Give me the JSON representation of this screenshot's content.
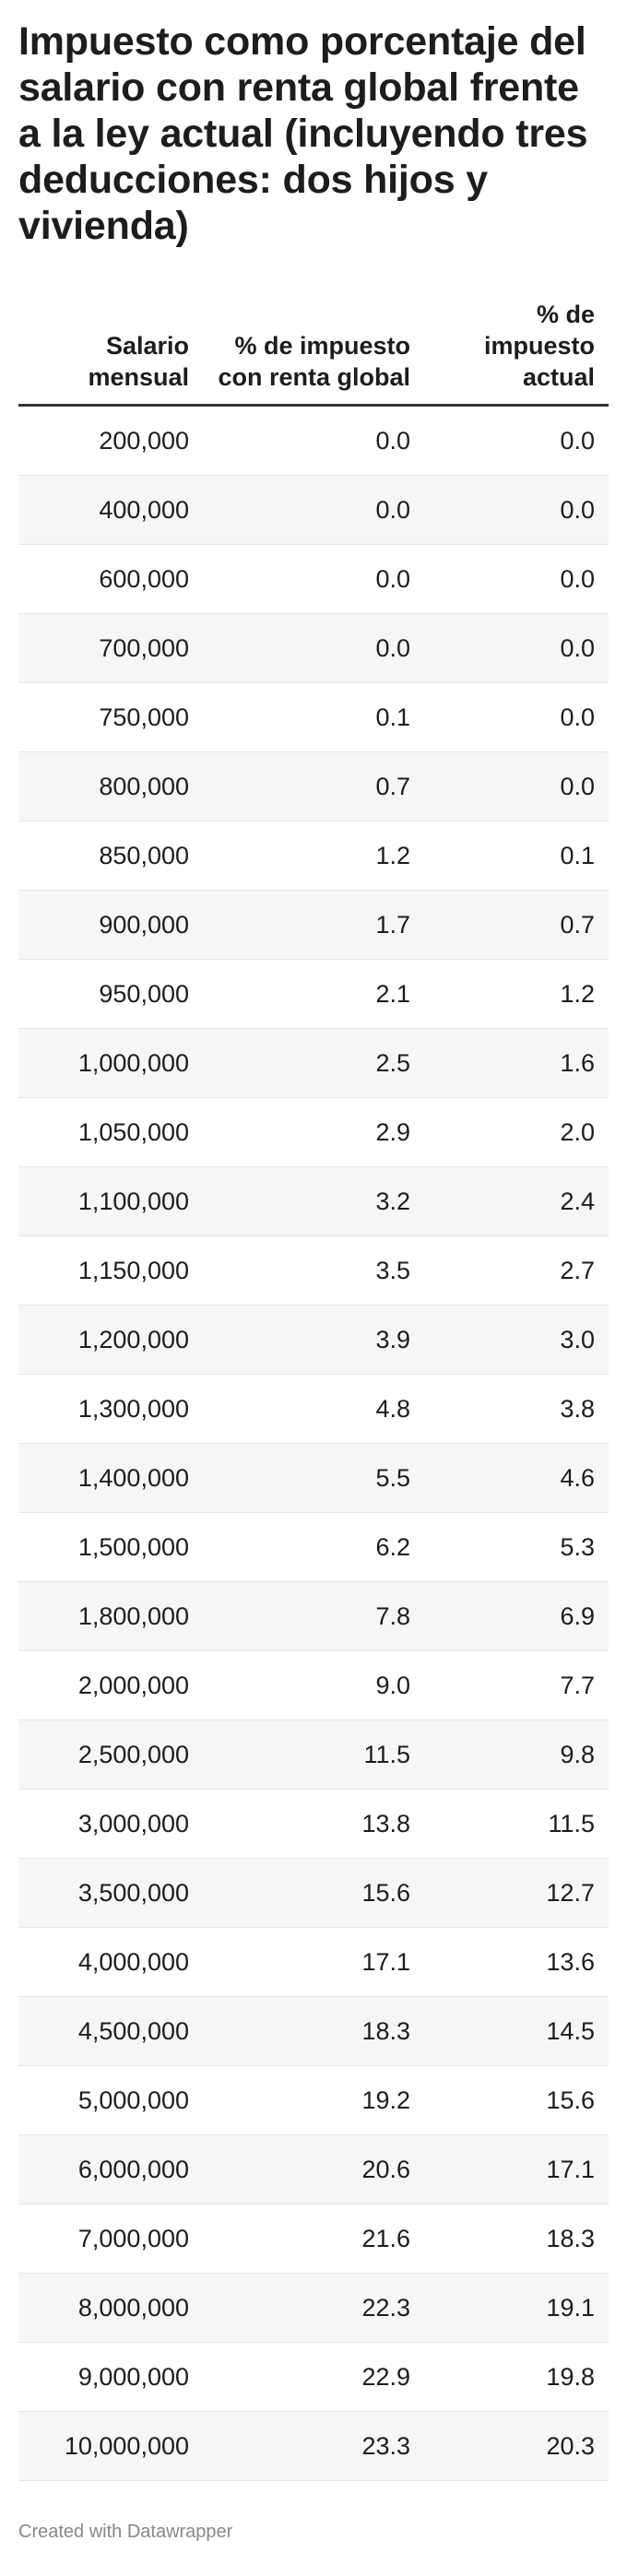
{
  "title": "Impuesto como porcentaje del salario con renta global frente a la ley actual (incluyendo tres deducciones: dos hijos y vivienda)",
  "footer": "Created with Datawrapper",
  "chart_data": {
    "type": "table",
    "title": "Impuesto como porcentaje del salario con renta global frente a la ley actual (incluyendo tres deducciones: dos hijos y vivienda)",
    "columns": [
      "Salario mensual",
      "% de impuesto con renta global",
      "% de impuesto actual"
    ],
    "rows": [
      [
        "200,000",
        "0.0",
        "0.0"
      ],
      [
        "400,000",
        "0.0",
        "0.0"
      ],
      [
        "600,000",
        "0.0",
        "0.0"
      ],
      [
        "700,000",
        "0.0",
        "0.0"
      ],
      [
        "750,000",
        "0.1",
        "0.0"
      ],
      [
        "800,000",
        "0.7",
        "0.0"
      ],
      [
        "850,000",
        "1.2",
        "0.1"
      ],
      [
        "900,000",
        "1.7",
        "0.7"
      ],
      [
        "950,000",
        "2.1",
        "1.2"
      ],
      [
        "1,000,000",
        "2.5",
        "1.6"
      ],
      [
        "1,050,000",
        "2.9",
        "2.0"
      ],
      [
        "1,100,000",
        "3.2",
        "2.4"
      ],
      [
        "1,150,000",
        "3.5",
        "2.7"
      ],
      [
        "1,200,000",
        "3.9",
        "3.0"
      ],
      [
        "1,300,000",
        "4.8",
        "3.8"
      ],
      [
        "1,400,000",
        "5.5",
        "4.6"
      ],
      [
        "1,500,000",
        "6.2",
        "5.3"
      ],
      [
        "1,800,000",
        "7.8",
        "6.9"
      ],
      [
        "2,000,000",
        "9.0",
        "7.7"
      ],
      [
        "2,500,000",
        "11.5",
        "9.8"
      ],
      [
        "3,000,000",
        "13.8",
        "11.5"
      ],
      [
        "3,500,000",
        "15.6",
        "12.7"
      ],
      [
        "4,000,000",
        "17.1",
        "13.6"
      ],
      [
        "4,500,000",
        "18.3",
        "14.5"
      ],
      [
        "5,000,000",
        "19.2",
        "15.6"
      ],
      [
        "6,000,000",
        "20.6",
        "17.1"
      ],
      [
        "7,000,000",
        "21.6",
        "18.3"
      ],
      [
        "8,000,000",
        "22.3",
        "19.1"
      ],
      [
        "9,000,000",
        "22.9",
        "19.8"
      ],
      [
        "10,000,000",
        "23.3",
        "20.3"
      ]
    ]
  }
}
